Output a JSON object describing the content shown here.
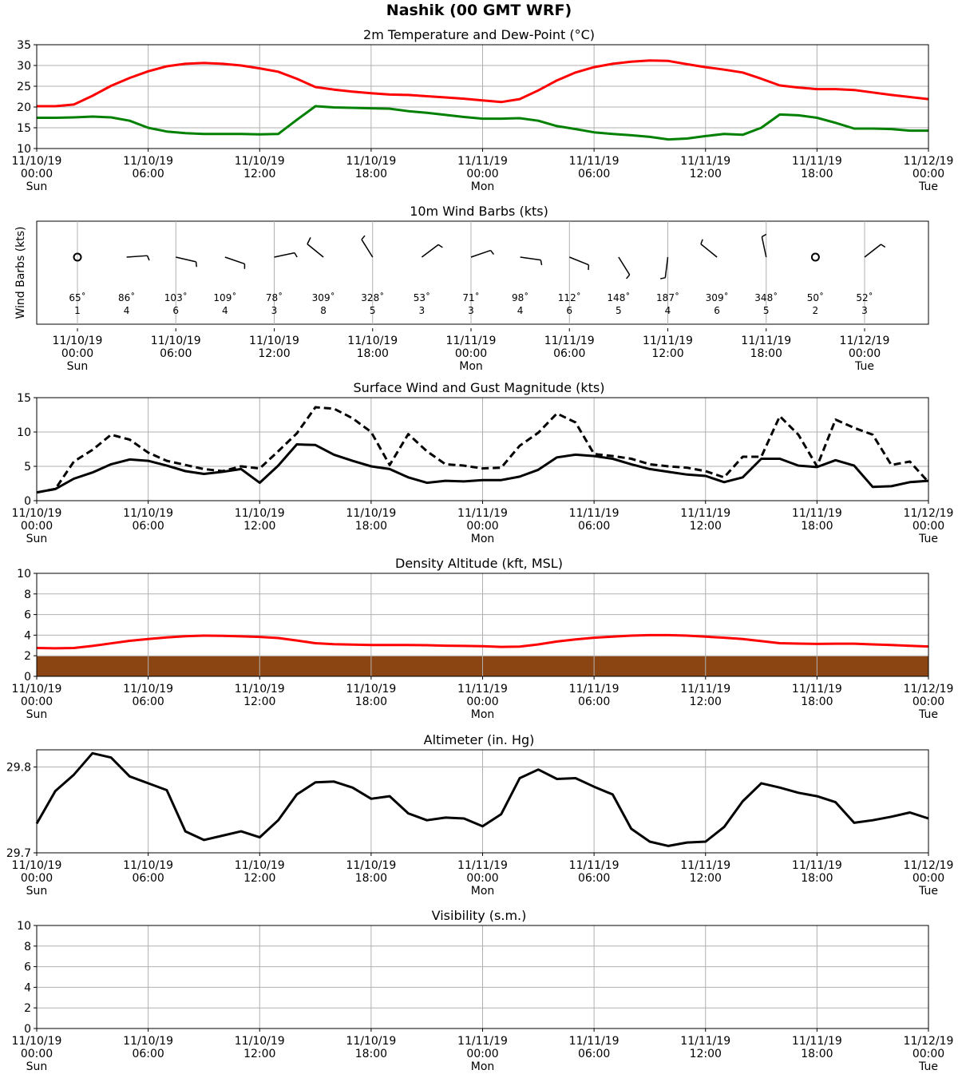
{
  "title": "Nashik (00 GMT WRF)",
  "x_ticks": [
    {
      "date": "11/10/19",
      "time": "00:00",
      "day": "Sun"
    },
    {
      "date": "11/10/19",
      "time": "06:00",
      "day": ""
    },
    {
      "date": "11/10/19",
      "time": "12:00",
      "day": ""
    },
    {
      "date": "11/10/19",
      "time": "18:00",
      "day": ""
    },
    {
      "date": "11/11/19",
      "time": "00:00",
      "day": "Mon"
    },
    {
      "date": "11/11/19",
      "time": "06:00",
      "day": ""
    },
    {
      "date": "11/11/19",
      "time": "12:00",
      "day": ""
    },
    {
      "date": "11/11/19",
      "time": "18:00",
      "day": ""
    },
    {
      "date": "11/12/19",
      "time": "00:00",
      "day": "Tue"
    }
  ],
  "colors": {
    "temperature": "#ff0000",
    "dewpoint": "#008000",
    "terrain": "#8b4513",
    "grid": "#b0b0b0"
  },
  "chart_data": [
    {
      "id": "temp",
      "type": "line",
      "title": "2m Temperature and Dew-Point (°C)",
      "ylim": [
        10,
        35
      ],
      "yticks": [
        10,
        15,
        20,
        25,
        30,
        35
      ],
      "grid": true,
      "x_hours": [
        0,
        1,
        2,
        3,
        4,
        5,
        6,
        7,
        8,
        9,
        10,
        11,
        12,
        13,
        14,
        15,
        16,
        17,
        18,
        19,
        20,
        21,
        22,
        23,
        24,
        25,
        26,
        27,
        28,
        29,
        30,
        31,
        32,
        33,
        34,
        35,
        36,
        37,
        38,
        39,
        40,
        41,
        42,
        43,
        44,
        45,
        46,
        47,
        48
      ],
      "series": [
        {
          "key": "temperature",
          "values": [
            20.2,
            20.2,
            20.6,
            22.7,
            25.1,
            27.0,
            28.6,
            29.8,
            30.4,
            30.6,
            30.4,
            30.0,
            29.3,
            28.5,
            26.8,
            24.8,
            24.2,
            23.7,
            23.3,
            23.0,
            22.9,
            22.6,
            22.3,
            22.0,
            21.6,
            21.2,
            21.9,
            24.0,
            26.4,
            28.3,
            29.6,
            30.4,
            30.9,
            31.2,
            31.1,
            30.3,
            29.6,
            29.0,
            28.3,
            26.8,
            25.2,
            24.7,
            24.3,
            24.3,
            24.1,
            23.5,
            22.9,
            22.4,
            21.9
          ]
        },
        {
          "key": "dewpoint",
          "values": [
            17.4,
            17.4,
            17.5,
            17.7,
            17.5,
            16.7,
            15.0,
            14.1,
            13.7,
            13.5,
            13.5,
            13.5,
            13.4,
            13.5,
            16.9,
            20.2,
            19.9,
            19.8,
            19.7,
            19.6,
            19.0,
            18.6,
            18.1,
            17.6,
            17.2,
            17.2,
            17.3,
            16.7,
            15.4,
            14.7,
            13.9,
            13.5,
            13.2,
            12.8,
            12.2,
            12.4,
            13.0,
            13.5,
            13.3,
            15.0,
            18.2,
            18.0,
            17.4,
            16.2,
            14.8,
            14.8,
            14.7,
            14.3,
            14.3
          ]
        }
      ]
    },
    {
      "id": "barbs",
      "type": "wind-barbs",
      "title": "10m Wind Barbs (kts)",
      "ylabel": "Wind Barbs (kts)",
      "x_hours": [
        0,
        3,
        6,
        9,
        12,
        15,
        18,
        21,
        24,
        27,
        30,
        33,
        36,
        39,
        42,
        45,
        48
      ],
      "directions": [
        65,
        86,
        103,
        109,
        78,
        309,
        328,
        53,
        71,
        98,
        112,
        148,
        187,
        309,
        348,
        50,
        52
      ],
      "speeds": [
        1,
        4,
        6,
        4,
        3,
        8,
        5,
        3,
        3,
        4,
        6,
        5,
        4,
        6,
        5,
        2,
        3
      ],
      "direction_labels": [
        "65˚",
        "86˚",
        "103˚",
        "109˚",
        "78˚",
        "309˚",
        "328˚",
        "53˚",
        "71˚",
        "98˚",
        "112˚",
        "148˚",
        "187˚",
        "309˚",
        "348˚",
        "50˚",
        "52˚"
      ],
      "speed_labels": [
        "1",
        "4",
        "6",
        "4",
        "3",
        "8",
        "5",
        "3",
        "3",
        "4",
        "6",
        "5",
        "4",
        "6",
        "5",
        "2",
        "3"
      ]
    },
    {
      "id": "wind",
      "type": "line",
      "title": "Surface Wind and Gust Magnitude (kts)",
      "ylim": [
        0,
        15
      ],
      "yticks": [
        0,
        5,
        10,
        15
      ],
      "grid": true,
      "x_hours": [
        0,
        1,
        2,
        3,
        4,
        5,
        6,
        7,
        8,
        9,
        10,
        11,
        12,
        13,
        14,
        15,
        16,
        17,
        18,
        19,
        20,
        21,
        22,
        23,
        24,
        25,
        26,
        27,
        28,
        29,
        30,
        31,
        32,
        33,
        34,
        35,
        36,
        37,
        38,
        39,
        40,
        41,
        42,
        43,
        44,
        45,
        46,
        47,
        48
      ],
      "series": [
        {
          "key": "wind",
          "values": [
            1.2,
            1.7,
            3.2,
            4.1,
            5.3,
            6.0,
            5.8,
            5.1,
            4.3,
            3.9,
            4.2,
            4.6,
            2.6,
            5.1,
            8.2,
            8.1,
            6.7,
            5.8,
            5.0,
            4.6,
            3.4,
            2.6,
            2.9,
            2.8,
            3.0,
            3.0,
            3.5,
            4.5,
            6.3,
            6.7,
            6.5,
            6.1,
            5.3,
            4.6,
            4.2,
            3.8,
            3.6,
            2.7,
            3.4,
            6.1,
            6.1,
            5.1,
            4.9,
            5.9,
            5.1,
            2.0,
            2.1,
            2.7,
            2.9
          ]
        },
        {
          "key": "gust",
          "values": [
            1.2,
            1.7,
            5.7,
            7.4,
            9.6,
            8.9,
            7.0,
            5.8,
            5.2,
            4.6,
            4.3,
            5.0,
            4.7,
            7.2,
            9.8,
            13.6,
            13.4,
            12.0,
            10.0,
            5.2,
            9.7,
            7.2,
            5.3,
            5.1,
            4.7,
            4.8,
            8.0,
            9.9,
            12.7,
            11.4,
            6.8,
            6.5,
            6.1,
            5.3,
            5.0,
            4.8,
            4.3,
            3.4,
            6.4,
            6.4,
            12.3,
            9.6,
            5.0,
            11.8,
            10.6,
            9.6,
            5.2,
            5.7,
            2.7
          ]
        }
      ]
    },
    {
      "id": "density",
      "type": "line",
      "title": "Density Altitude (kft, MSL)",
      "ylim": [
        0,
        10
      ],
      "yticks": [
        0,
        2,
        4,
        6,
        8,
        10
      ],
      "grid": true,
      "terrain_kft": 1.95,
      "x_hours": [
        0,
        1,
        2,
        3,
        4,
        5,
        6,
        7,
        8,
        9,
        10,
        11,
        12,
        13,
        14,
        15,
        16,
        17,
        18,
        19,
        20,
        21,
        22,
        23,
        24,
        25,
        26,
        27,
        28,
        29,
        30,
        31,
        32,
        33,
        34,
        35,
        36,
        37,
        38,
        39,
        40,
        41,
        42,
        43,
        44,
        45,
        46,
        47,
        48
      ],
      "series": [
        {
          "key": "density",
          "values": [
            2.75,
            2.72,
            2.75,
            2.95,
            3.2,
            3.45,
            3.62,
            3.78,
            3.9,
            3.95,
            3.93,
            3.88,
            3.83,
            3.72,
            3.48,
            3.22,
            3.12,
            3.08,
            3.05,
            3.04,
            3.04,
            3.02,
            2.98,
            2.95,
            2.92,
            2.86,
            2.88,
            3.1,
            3.38,
            3.58,
            3.75,
            3.85,
            3.95,
            4.0,
            4.0,
            3.95,
            3.85,
            3.75,
            3.62,
            3.42,
            3.22,
            3.18,
            3.15,
            3.17,
            3.17,
            3.1,
            3.05,
            2.97,
            2.9
          ]
        }
      ]
    },
    {
      "id": "altimeter",
      "type": "line",
      "title": "Altimeter (in. Hg)",
      "ylim": [
        29.7,
        29.82
      ],
      "yticks": [
        29.7,
        29.8
      ],
      "grid": true,
      "x_hours": [
        0,
        1,
        2,
        3,
        4,
        5,
        6,
        7,
        8,
        9,
        10,
        11,
        12,
        13,
        14,
        15,
        16,
        17,
        18,
        19,
        20,
        21,
        22,
        23,
        24,
        25,
        26,
        27,
        28,
        29,
        30,
        31,
        32,
        33,
        34,
        35,
        36,
        37,
        38,
        39,
        40,
        41,
        42,
        43,
        44,
        45,
        46,
        47,
        48
      ],
      "series": [
        {
          "key": "altimeter",
          "values": [
            29.734,
            29.772,
            29.791,
            29.816,
            29.811,
            29.789,
            29.781,
            29.773,
            29.725,
            29.715,
            29.72,
            29.725,
            29.718,
            29.738,
            29.768,
            29.782,
            29.783,
            29.776,
            29.763,
            29.766,
            29.746,
            29.738,
            29.741,
            29.74,
            29.731,
            29.745,
            29.787,
            29.797,
            29.786,
            29.787,
            29.777,
            29.768,
            29.728,
            29.713,
            29.708,
            29.712,
            29.713,
            29.73,
            29.76,
            29.781,
            29.776,
            29.77,
            29.766,
            29.759,
            29.735,
            29.738,
            29.742,
            29.747,
            29.74
          ]
        }
      ]
    },
    {
      "id": "visibility",
      "type": "line",
      "title": "Visibility (s.m.)",
      "ylim": [
        0,
        10
      ],
      "yticks": [
        0,
        2,
        4,
        6,
        8,
        10
      ],
      "grid": true,
      "x_hours": [],
      "series": []
    }
  ]
}
